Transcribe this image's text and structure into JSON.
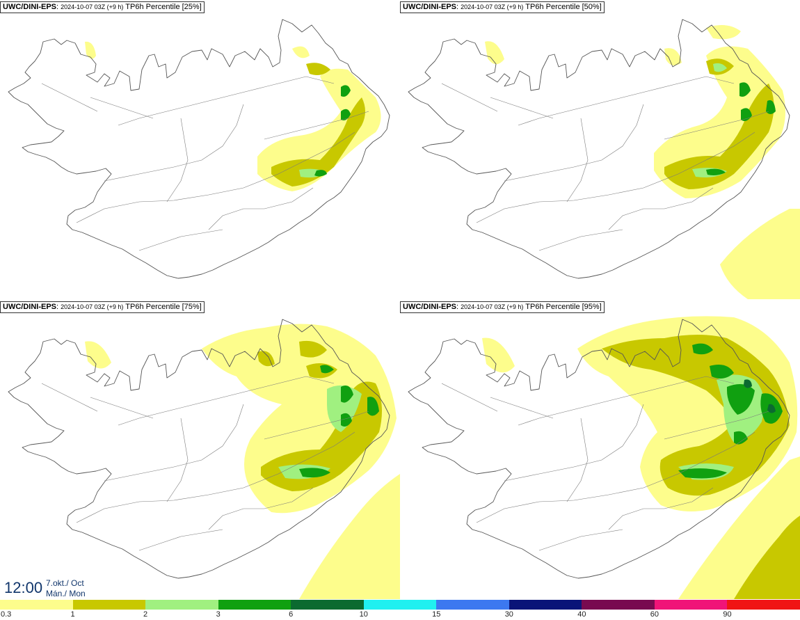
{
  "panels": [
    {
      "model": "UWC/DINI-EPS",
      "run": "2024-10-07 03Z (+9 h)",
      "field": "TP6h Percentile [25%]",
      "percentile": 25
    },
    {
      "model": "UWC/DINI-EPS",
      "run": "2024-10-07 03Z (+9 h)",
      "field": "TP6h Percentile [50%]",
      "percentile": 50
    },
    {
      "model": "UWC/DINI-EPS",
      "run": "2024-10-07 03Z (+9 h)",
      "field": "TP6h Percentile [75%]",
      "percentile": 75
    },
    {
      "model": "UWC/DINI-EPS",
      "run": "2024-10-07 03Z (+9 h)",
      "field": "TP6h Percentile [95%]",
      "percentile": 95
    }
  ],
  "valid_time": {
    "time": "12:00",
    "date": "7.okt./ Oct",
    "day": "Mán./ Mon"
  },
  "colorbar": {
    "labels": [
      "0.3",
      "1",
      "2",
      "3",
      "6",
      "10",
      "15",
      "30",
      "40",
      "60",
      "90"
    ],
    "colors": [
      "#fdfd8c",
      "#c8c800",
      "#a0f080",
      "#10a010",
      "#0b6a30",
      "#20f0f0",
      "#3c78f0",
      "#0a1478",
      "#780a50",
      "#f01478",
      "#f01414"
    ]
  },
  "map_colors": {
    "land": "#ffffff",
    "coast": "#555555",
    "road": "#7a7a7a"
  }
}
